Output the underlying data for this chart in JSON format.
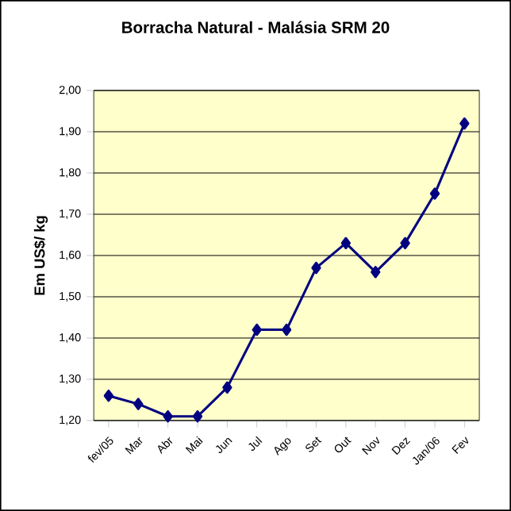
{
  "chart_data": {
    "type": "line",
    "title": "Borracha Natural - Malásia SRM 20",
    "ylabel": "Em US$/ kg",
    "categories": [
      "fev/05",
      "Mar",
      "Abr",
      "Mai",
      "Jun",
      "Jul",
      "Ago",
      "Set",
      "Out",
      "Nov",
      "Dez",
      "Jan/06",
      "Fev"
    ],
    "series": [
      {
        "color": "#000080",
        "values": [
          1.26,
          1.24,
          1.21,
          1.21,
          1.28,
          1.42,
          1.42,
          1.57,
          1.63,
          1.56,
          1.63,
          1.75,
          1.92
        ]
      }
    ],
    "ylim": [
      1.2,
      2.0
    ],
    "yticks": [
      {
        "value": 1.2,
        "label": "1,20"
      },
      {
        "value": 1.3,
        "label": "1,30"
      },
      {
        "value": 1.4,
        "label": "1,40"
      },
      {
        "value": 1.5,
        "label": "1,50"
      },
      {
        "value": 1.6,
        "label": "1,60"
      },
      {
        "value": 1.7,
        "label": "1,70"
      },
      {
        "value": 1.8,
        "label": "1,80"
      },
      {
        "value": 1.9,
        "label": "1,90"
      },
      {
        "value": 2.0,
        "label": "2,00"
      }
    ],
    "grid": "y",
    "marker": "diamond",
    "line_style": "solid"
  }
}
